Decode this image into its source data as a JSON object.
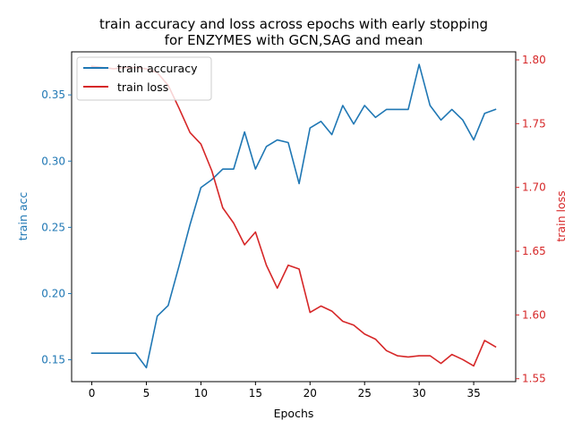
{
  "chart_data": {
    "type": "line",
    "title_line1": "train accuracy and loss across epochs with early stopping",
    "title_line2": "for ENZYMES with GCN,SAG and mean",
    "xlabel": "Epochs",
    "ylabel_left": "train acc",
    "ylabel_right": "train loss",
    "x": [
      0,
      1,
      2,
      3,
      4,
      5,
      6,
      7,
      8,
      9,
      10,
      11,
      12,
      13,
      14,
      15,
      16,
      17,
      18,
      19,
      20,
      21,
      22,
      23,
      24,
      25,
      26,
      27,
      28,
      29,
      30,
      31,
      32,
      33,
      34,
      35,
      36,
      37
    ],
    "xlim": [
      -1.85,
      38.85
    ],
    "ylim_left": [
      0.1335,
      0.3825
    ],
    "ylim_right": [
      1.5477,
      1.8063
    ],
    "xticks": [
      0,
      5,
      10,
      15,
      20,
      25,
      30,
      35
    ],
    "yticks_left": [
      0.15,
      0.2,
      0.25,
      0.3,
      0.35
    ],
    "yticks_left_labels": [
      "0.15",
      "0.20",
      "0.25",
      "0.30",
      "0.35"
    ],
    "yticks_right": [
      1.55,
      1.6,
      1.65,
      1.7,
      1.75,
      1.8
    ],
    "yticks_right_labels": [
      "1.55",
      "1.60",
      "1.65",
      "1.70",
      "1.75",
      "1.80"
    ],
    "legend_position": "top-left",
    "series": [
      {
        "name": "train accuracy",
        "axis": "left",
        "color": "#1f77b4",
        "values": [
          0.155,
          0.155,
          0.155,
          0.155,
          0.155,
          0.144,
          0.183,
          0.191,
          0.221,
          0.252,
          0.28,
          0.286,
          0.294,
          0.294,
          0.322,
          0.294,
          0.311,
          0.316,
          0.314,
          0.283,
          0.325,
          0.33,
          0.32,
          0.342,
          0.328,
          0.342,
          0.333,
          0.339,
          0.339,
          0.339,
          0.373,
          0.342,
          0.331,
          0.339,
          0.331,
          0.316,
          0.336,
          0.339
        ]
      },
      {
        "name": "train loss",
        "axis": "right",
        "color": "#d62728",
        "values": [
          1.795,
          1.794,
          1.793,
          1.794,
          1.794,
          1.793,
          1.79,
          1.78,
          1.762,
          1.743,
          1.734,
          1.713,
          1.684,
          1.672,
          1.655,
          1.665,
          1.639,
          1.621,
          1.639,
          1.636,
          1.602,
          1.607,
          1.603,
          1.595,
          1.592,
          1.585,
          1.581,
          1.572,
          1.568,
          1.567,
          1.568,
          1.568,
          1.562,
          1.569,
          1.565,
          1.56,
          1.58,
          1.575
        ]
      }
    ]
  }
}
